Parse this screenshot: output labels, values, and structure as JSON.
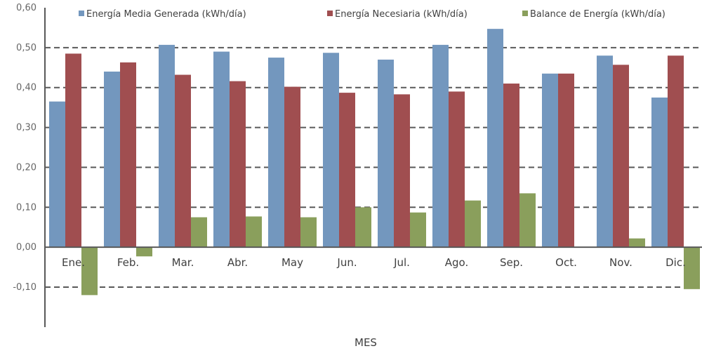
{
  "chart_data": {
    "type": "bar",
    "categories": [
      "Ene.",
      "Feb.",
      "Mar.",
      "Abr.",
      "May",
      "Jun.",
      "Jul.",
      "Ago.",
      "Sep.",
      "Oct.",
      "Nov.",
      "Dic."
    ],
    "series": [
      {
        "name": "Energía Media Generada (kWh/día)",
        "color": "#7397BE",
        "values": [
          0.365,
          0.44,
          0.507,
          0.49,
          0.475,
          0.487,
          0.47,
          0.507,
          0.547,
          0.435,
          0.48,
          0.375
        ]
      },
      {
        "name": "Energía Necesiaria (kWh/día)",
        "color": "#A04E50",
        "values": [
          0.485,
          0.463,
          0.432,
          0.416,
          0.402,
          0.387,
          0.383,
          0.39,
          0.41,
          0.435,
          0.457,
          0.48
        ]
      },
      {
        "name": "Balance de Energía (kWh/día)",
        "color": "#8A9F5C",
        "values": [
          -0.12,
          -0.023,
          0.075,
          0.077,
          0.075,
          0.1,
          0.087,
          0.117,
          0.135,
          0.0,
          0.022,
          -0.105
        ]
      }
    ],
    "yticks": [
      "-0,10",
      "0,00",
      "0,10",
      "0,20",
      "0,30",
      "0,40",
      "0,50",
      "0,60"
    ],
    "ylim": [
      -0.1,
      0.6
    ],
    "xlabel": "MES",
    "ylabel": "",
    "grid": "dashed horizontal",
    "legend": "top"
  }
}
